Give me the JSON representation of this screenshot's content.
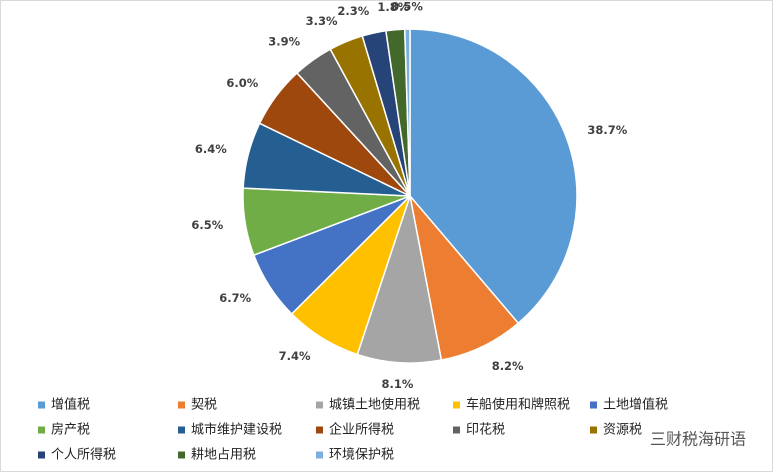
{
  "chart_data": {
    "type": "pie",
    "categories": [
      "增值税",
      "契税",
      "城镇土地使用税",
      "车船使用和牌照税",
      "土地增值税",
      "房产税",
      "城市维护建设税",
      "企业所得税",
      "印花税",
      "资源税",
      "个人所得税",
      "耕地占用税",
      "环境保护税"
    ],
    "values": [
      38.7,
      8.2,
      8.1,
      7.4,
      6.7,
      6.5,
      6.4,
      6.0,
      3.9,
      3.3,
      2.3,
      1.8,
      0.5
    ],
    "value_labels": [
      "38.7%",
      "8.2%",
      "8.1%",
      "7.4%",
      "6.7%",
      "6.5%",
      "6.4%",
      "6.0%",
      "3.9%",
      "3.3%",
      "2.3%",
      "1.8%",
      "0.5%"
    ],
    "colors": [
      "#5B9BD5",
      "#ED7D31",
      "#A5A5A5",
      "#FFC000",
      "#4472C4",
      "#70AD47",
      "#255E91",
      "#9E480E",
      "#636363",
      "#997300",
      "#264478",
      "#43682B",
      "#7CAFDD"
    ],
    "legend": "bottom",
    "watermark": "三财税海研语"
  }
}
